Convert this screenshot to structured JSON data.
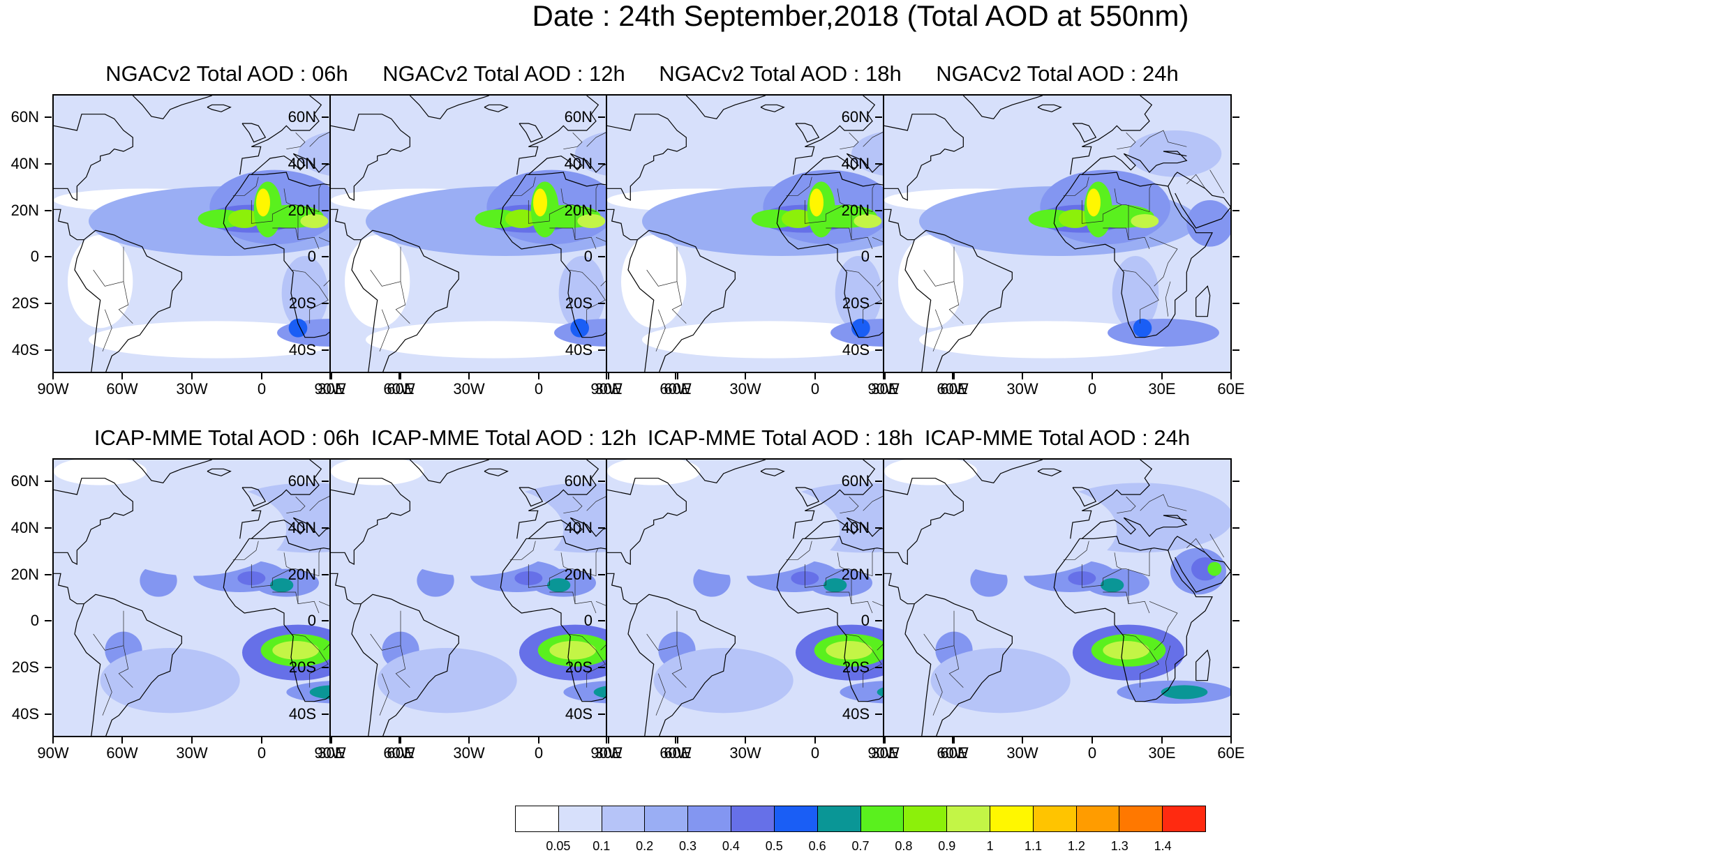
{
  "title": "Date : 24th September,2018 (Total AOD at 550nm)",
  "lat_labels": [
    "60N",
    "40N",
    "20N",
    "0",
    "20S",
    "40S"
  ],
  "lon_labels": [
    "90W",
    "60W",
    "30W",
    "0",
    "30E",
    "60E"
  ],
  "lat_values": [
    60,
    40,
    20,
    0,
    -20,
    -40
  ],
  "lon_values": [
    -90,
    -60,
    -30,
    0,
    30,
    60
  ],
  "map_extent": {
    "lon": [
      -90,
      60
    ],
    "lat": [
      -50,
      70
    ]
  },
  "panels": [
    {
      "title": "NGACv2 Total AOD : 06h",
      "model": "NGACv2",
      "hour": "06h"
    },
    {
      "title": "NGACv2 Total AOD : 12h",
      "model": "NGACv2",
      "hour": "12h"
    },
    {
      "title": "NGACv2 Total AOD : 18h",
      "model": "NGACv2",
      "hour": "18h"
    },
    {
      "title": "NGACv2 Total AOD : 24h",
      "model": "NGACv2",
      "hour": "24h"
    },
    {
      "title": "ICAP-MME Total AOD : 06h",
      "model": "ICAP-MME",
      "hour": "06h"
    },
    {
      "title": "ICAP-MME Total AOD : 12h",
      "model": "ICAP-MME",
      "hour": "12h"
    },
    {
      "title": "ICAP-MME Total AOD : 18h",
      "model": "ICAP-MME",
      "hour": "18h"
    },
    {
      "title": "ICAP-MME Total AOD : 24h",
      "model": "ICAP-MME",
      "hour": "24h"
    }
  ],
  "colorbar": {
    "colors": [
      "#ffffff",
      "#d7e0fb",
      "#b6c4f8",
      "#9aaef4",
      "#8396f1",
      "#6670e8",
      "#1a5ef5",
      "#0a9696",
      "#5af01e",
      "#8cf00a",
      "#c3f546",
      "#fff700",
      "#ffc400",
      "#ff9c00",
      "#ff7800",
      "#ff2a10"
    ],
    "labels": [
      "0.05",
      "0.1",
      "0.2",
      "0.3",
      "0.4",
      "0.5",
      "0.6",
      "0.7",
      "0.8",
      "0.9",
      "1",
      "1.1",
      "1.2",
      "1.3",
      "1.4"
    ]
  }
}
